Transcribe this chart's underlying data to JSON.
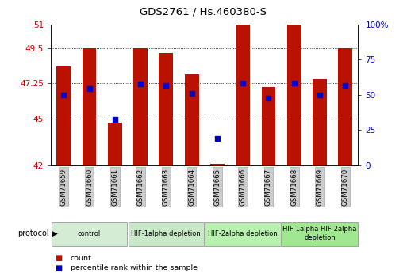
{
  "title": "GDS2761 / Hs.460380-S",
  "samples": [
    "GSM71659",
    "GSM71660",
    "GSM71661",
    "GSM71662",
    "GSM71663",
    "GSM71664",
    "GSM71665",
    "GSM71666",
    "GSM71667",
    "GSM71668",
    "GSM71669",
    "GSM71670"
  ],
  "bar_tops": [
    48.3,
    49.5,
    44.7,
    49.5,
    49.2,
    47.8,
    42.1,
    51.0,
    47.0,
    51.0,
    47.5,
    49.5
  ],
  "bar_bottom": 42,
  "blue_markers": [
    46.5,
    46.9,
    44.9,
    47.2,
    47.1,
    46.6,
    43.7,
    47.25,
    46.3,
    47.25,
    46.5,
    47.1
  ],
  "blue_marker_size": 25,
  "ylim_left": [
    42,
    51
  ],
  "yticks_left": [
    42,
    45,
    47.25,
    49.5,
    51
  ],
  "ytick_labels_left": [
    "42",
    "45",
    "47.25",
    "49.5",
    "51"
  ],
  "ylim_right": [
    0,
    100
  ],
  "yticks_right": [
    0,
    25,
    50,
    75,
    100
  ],
  "ytick_labels_right": [
    "0",
    "25",
    "50",
    "75",
    "100%"
  ],
  "bar_color": "#bb1100",
  "blue_color": "#0000cc",
  "bar_width": 0.55,
  "protocol_groups": [
    {
      "label": "control",
      "start": 0,
      "end": 2,
      "color": "#d4ecd4"
    },
    {
      "label": "HIF-1alpha depletion",
      "start": 3,
      "end": 5,
      "color": "#c8e8c8"
    },
    {
      "label": "HIF-2alpha depletion",
      "start": 6,
      "end": 8,
      "color": "#b8f0b0"
    },
    {
      "label": "HIF-1alpha HIF-2alpha\ndepletion",
      "start": 9,
      "end": 11,
      "color": "#a0e890"
    }
  ],
  "legend_items": [
    {
      "label": "count",
      "color": "#bb1100"
    },
    {
      "label": "percentile rank within the sample",
      "color": "#0000cc"
    }
  ],
  "axis_label_color_left": "#cc0000",
  "axis_label_color_right": "#0000cc",
  "tick_label_bg": "#cccccc"
}
